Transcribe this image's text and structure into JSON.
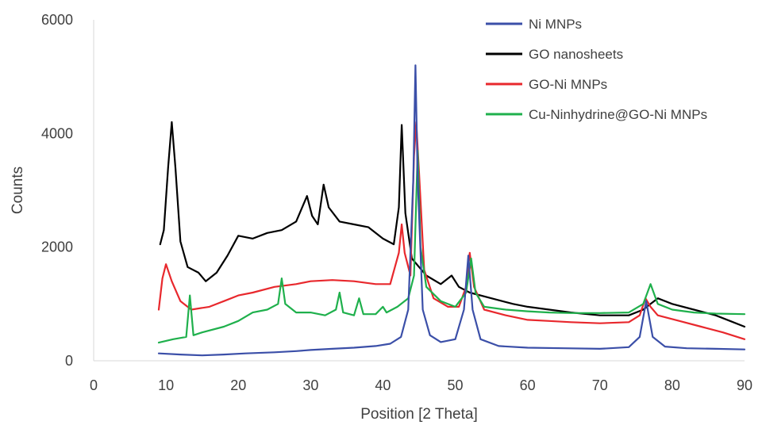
{
  "chart_data": {
    "type": "line",
    "title": "",
    "xlabel": "Position [2 Theta]",
    "ylabel": "Counts",
    "xlim": [
      0,
      90
    ],
    "ylim": [
      0,
      6000
    ],
    "x_ticks": [
      "0",
      "10",
      "20",
      "30",
      "40",
      "50",
      "60",
      "70",
      "80",
      "90"
    ],
    "y_ticks": [
      "0",
      "2000",
      "4000",
      "6000"
    ],
    "grid": false,
    "legend_position": "top-right",
    "series": [
      {
        "name": "Ni MNPs",
        "color": "#3b4fa8",
        "points": [
          [
            9,
            130
          ],
          [
            12,
            110
          ],
          [
            15,
            95
          ],
          [
            18,
            110
          ],
          [
            21,
            130
          ],
          [
            25,
            150
          ],
          [
            28,
            170
          ],
          [
            30,
            190
          ],
          [
            33,
            210
          ],
          [
            36,
            230
          ],
          [
            39,
            260
          ],
          [
            41,
            300
          ],
          [
            42.5,
            420
          ],
          [
            43.5,
            900
          ],
          [
            44.2,
            3200
          ],
          [
            44.5,
            5200
          ],
          [
            44.8,
            3200
          ],
          [
            45.5,
            900
          ],
          [
            46.5,
            450
          ],
          [
            48,
            330
          ],
          [
            50,
            380
          ],
          [
            51.2,
            900
          ],
          [
            51.8,
            1850
          ],
          [
            52.4,
            900
          ],
          [
            53.5,
            380
          ],
          [
            56,
            260
          ],
          [
            60,
            230
          ],
          [
            65,
            220
          ],
          [
            70,
            210
          ],
          [
            74,
            240
          ],
          [
            75.5,
            420
          ],
          [
            76.4,
            1050
          ],
          [
            77.3,
            420
          ],
          [
            79,
            250
          ],
          [
            82,
            220
          ],
          [
            86,
            210
          ],
          [
            90,
            200
          ]
        ]
      },
      {
        "name": "GO nanosheets",
        "color": "#000000",
        "points": [
          [
            9.2,
            2050
          ],
          [
            9.7,
            2300
          ],
          [
            10.3,
            3400
          ],
          [
            10.8,
            4200
          ],
          [
            11.3,
            3400
          ],
          [
            12,
            2100
          ],
          [
            13,
            1650
          ],
          [
            14.5,
            1550
          ],
          [
            15.5,
            1400
          ],
          [
            17,
            1550
          ],
          [
            18.5,
            1850
          ],
          [
            20,
            2200
          ],
          [
            22,
            2150
          ],
          [
            24,
            2250
          ],
          [
            26,
            2300
          ],
          [
            28,
            2450
          ],
          [
            29.5,
            2900
          ],
          [
            30.2,
            2550
          ],
          [
            31,
            2400
          ],
          [
            31.8,
            3100
          ],
          [
            32.5,
            2700
          ],
          [
            34,
            2450
          ],
          [
            36,
            2400
          ],
          [
            38,
            2350
          ],
          [
            40,
            2150
          ],
          [
            41.5,
            2050
          ],
          [
            42.2,
            2700
          ],
          [
            42.6,
            4150
          ],
          [
            43.1,
            2600
          ],
          [
            44,
            1800
          ],
          [
            45,
            1650
          ],
          [
            46,
            1500
          ],
          [
            48,
            1350
          ],
          [
            49.5,
            1500
          ],
          [
            50.5,
            1300
          ],
          [
            52,
            1200
          ],
          [
            55,
            1100
          ],
          [
            58,
            1000
          ],
          [
            60,
            950
          ],
          [
            63,
            900
          ],
          [
            66,
            850
          ],
          [
            70,
            800
          ],
          [
            74,
            800
          ],
          [
            76,
            900
          ],
          [
            77,
            1000
          ],
          [
            78,
            1100
          ],
          [
            80,
            1000
          ],
          [
            83,
            900
          ],
          [
            86,
            800
          ],
          [
            88,
            700
          ],
          [
            90,
            600
          ]
        ]
      },
      {
        "name": "GO-Ni MNPs",
        "color": "#e8282d",
        "points": [
          [
            9,
            900
          ],
          [
            9.5,
            1450
          ],
          [
            10,
            1700
          ],
          [
            10.8,
            1400
          ],
          [
            12,
            1050
          ],
          [
            13.5,
            900
          ],
          [
            16,
            950
          ],
          [
            18,
            1050
          ],
          [
            20,
            1150
          ],
          [
            22,
            1200
          ],
          [
            25,
            1300
          ],
          [
            28,
            1350
          ],
          [
            30,
            1400
          ],
          [
            33,
            1420
          ],
          [
            36,
            1400
          ],
          [
            39,
            1350
          ],
          [
            41,
            1350
          ],
          [
            42.2,
            1900
          ],
          [
            42.6,
            2400
          ],
          [
            43,
            1900
          ],
          [
            43.8,
            1500
          ],
          [
            44.3,
            3600
          ],
          [
            44.6,
            4200
          ],
          [
            45,
            3300
          ],
          [
            45.7,
            1600
          ],
          [
            47,
            1100
          ],
          [
            49,
            950
          ],
          [
            50.5,
            950
          ],
          [
            51.5,
            1300
          ],
          [
            52,
            1900
          ],
          [
            52.6,
            1300
          ],
          [
            54,
            900
          ],
          [
            57,
            800
          ],
          [
            60,
            720
          ],
          [
            63,
            700
          ],
          [
            66,
            680
          ],
          [
            70,
            660
          ],
          [
            74,
            680
          ],
          [
            75.5,
            800
          ],
          [
            76.3,
            1100
          ],
          [
            77,
            950
          ],
          [
            78,
            800
          ],
          [
            81,
            700
          ],
          [
            84,
            600
          ],
          [
            87,
            500
          ],
          [
            90,
            380
          ]
        ]
      },
      {
        "name": "Cu-Ninhydrine@GO-Ni MNPs",
        "color": "#1fb04c",
        "points": [
          [
            9,
            320
          ],
          [
            11,
            380
          ],
          [
            12.8,
            420
          ],
          [
            13.3,
            1150
          ],
          [
            13.8,
            450
          ],
          [
            15,
            500
          ],
          [
            18,
            600
          ],
          [
            20,
            700
          ],
          [
            22,
            850
          ],
          [
            24,
            900
          ],
          [
            25.5,
            1000
          ],
          [
            26,
            1450
          ],
          [
            26.5,
            1000
          ],
          [
            28,
            850
          ],
          [
            30,
            850
          ],
          [
            32,
            800
          ],
          [
            33.5,
            900
          ],
          [
            34,
            1200
          ],
          [
            34.5,
            850
          ],
          [
            36,
            800
          ],
          [
            36.7,
            1100
          ],
          [
            37.3,
            820
          ],
          [
            39,
            820
          ],
          [
            40,
            950
          ],
          [
            40.5,
            850
          ],
          [
            42,
            950
          ],
          [
            43.5,
            1100
          ],
          [
            44.3,
            1500
          ],
          [
            44.8,
            3700
          ],
          [
            45.2,
            2000
          ],
          [
            46,
            1300
          ],
          [
            48,
            1050
          ],
          [
            50,
            950
          ],
          [
            51.5,
            1200
          ],
          [
            52.2,
            1800
          ],
          [
            52.8,
            1200
          ],
          [
            54,
            950
          ],
          [
            57,
            900
          ],
          [
            60,
            870
          ],
          [
            63,
            850
          ],
          [
            66,
            840
          ],
          [
            70,
            840
          ],
          [
            74,
            850
          ],
          [
            76,
            1000
          ],
          [
            77,
            1350
          ],
          [
            78,
            1000
          ],
          [
            80,
            900
          ],
          [
            83,
            850
          ],
          [
            86,
            830
          ],
          [
            90,
            820
          ]
        ]
      }
    ]
  }
}
